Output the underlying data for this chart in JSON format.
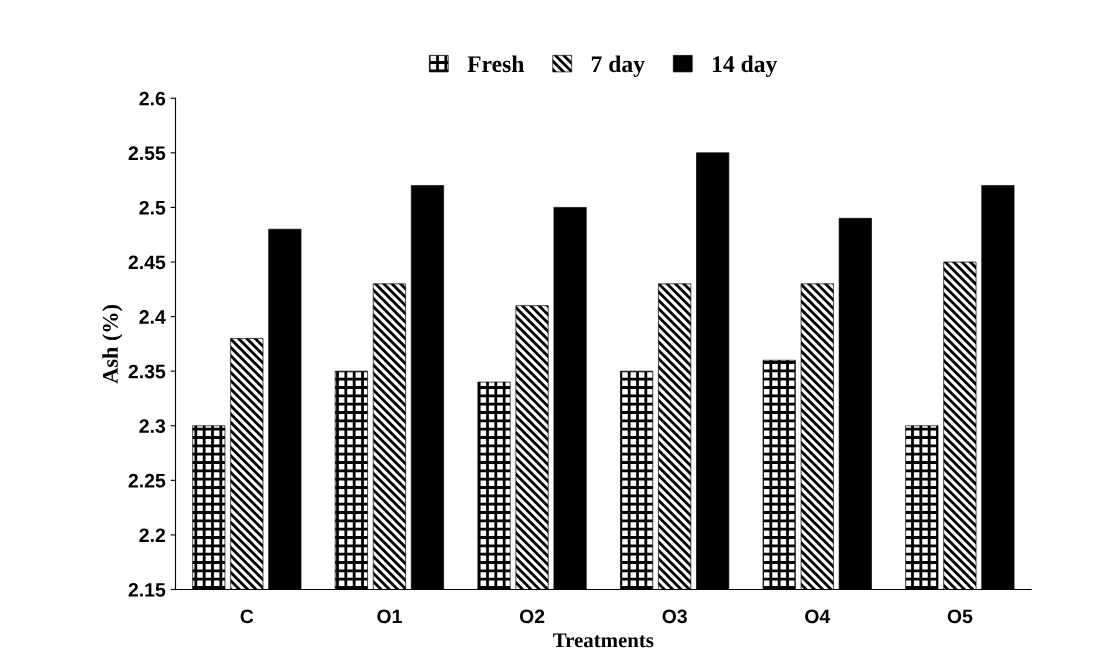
{
  "chart_data": {
    "type": "bar",
    "xlabel": "Treatments",
    "ylabel": "Ash (%)",
    "categories": [
      "C",
      "O1",
      "O2",
      "O3",
      "O4",
      "O5"
    ],
    "series": [
      {
        "name": "Fresh",
        "color": "#000000",
        "values": [
          2.3,
          2.35,
          2.34,
          2.35,
          2.36,
          2.3
        ]
      },
      {
        "name": "7 day",
        "color": "#000000",
        "values": [
          2.38,
          2.43,
          2.41,
          2.43,
          2.43,
          2.45
        ]
      },
      {
        "name": "14 day",
        "color": "#000000",
        "values": [
          2.48,
          2.52,
          2.5,
          2.55,
          2.49,
          2.52
        ]
      }
    ],
    "ylim": [
      2.15,
      2.6
    ],
    "yticks": [
      2.15,
      2.2,
      2.25,
      2.3,
      2.35,
      2.4,
      2.45,
      2.5,
      2.55,
      2.6
    ],
    "grid": false,
    "legend": "top"
  }
}
